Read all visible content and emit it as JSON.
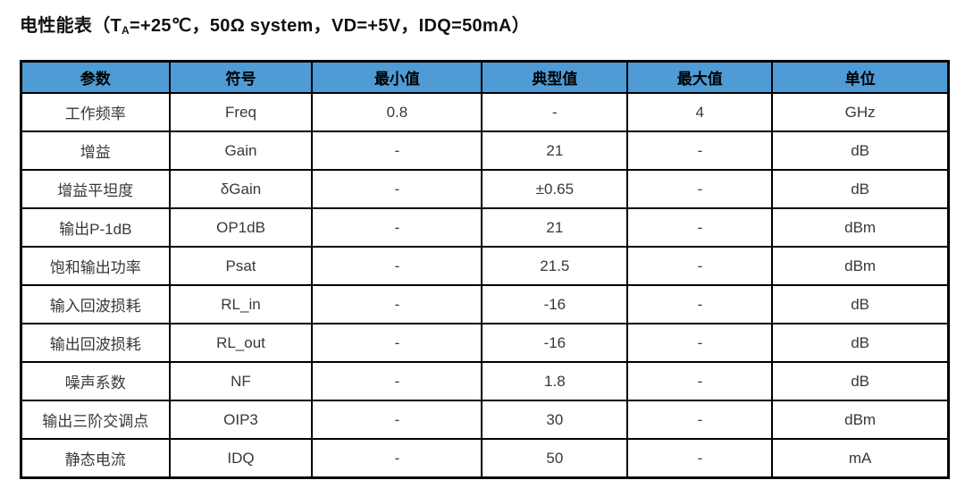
{
  "page": {
    "title": {
      "prefix": "电性能表（T",
      "subscript": "A",
      "suffix": "=+25℃，50Ω system，VD=+5V，IDQ=50mA）"
    }
  },
  "colors": {
    "header_bg": "#4E9BD5",
    "header_text": "#000000",
    "body_text": "#383838",
    "border": "#000000"
  },
  "table": {
    "columns": [
      "参数",
      "符号",
      "最小值",
      "典型值",
      "最大值",
      "单位"
    ],
    "rows": [
      [
        "工作频率",
        "Freq",
        "0.8",
        "-",
        "4",
        "GHz"
      ],
      [
        "增益",
        "Gain",
        "-",
        "21",
        "-",
        "dB"
      ],
      [
        "增益平坦度",
        "δGain",
        "-",
        "±0.65",
        "-",
        "dB"
      ],
      [
        "输出P-1dB",
        "OP1dB",
        "-",
        "21",
        "-",
        "dBm"
      ],
      [
        "饱和输出功率",
        "Psat",
        "-",
        "21.5",
        "-",
        "dBm"
      ],
      [
        "输入回波损耗",
        "RL_in",
        "-",
        "-16",
        "-",
        "dB"
      ],
      [
        "输出回波损耗",
        "RL_out",
        "-",
        "-16",
        "-",
        "dB"
      ],
      [
        "噪声系数",
        "NF",
        "-",
        "1.8",
        "-",
        "dB"
      ],
      [
        "输出三阶交调点",
        "OIP3",
        "-",
        "30",
        "-",
        "dBm"
      ],
      [
        "静态电流",
        "IDQ",
        "-",
        "50",
        "-",
        "mA"
      ]
    ]
  }
}
